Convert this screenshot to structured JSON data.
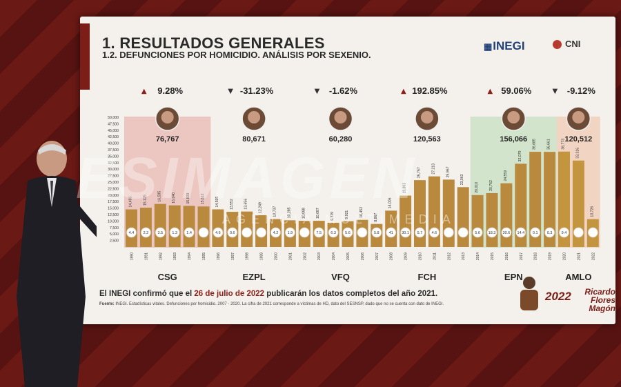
{
  "screen": {
    "title": "1. RESULTADOS GENERALES",
    "subtitle": "1.2. DEFUNCIONES POR HOMICIDIO. ANÁLISIS POR SEXENIO.",
    "logos": {
      "inegi": "INEGI",
      "cni": "CNI"
    },
    "footer_note": {
      "prefix": "El INEGI confirmó que el ",
      "highlight": "26 de julio de 2022",
      "suffix": " publicarán los datos completos del año 2021."
    },
    "source_label": "Fuente:",
    "source_text": "INEGI. Estadísticas vitales. Defunciones por homicidio. 2007 - 2020. La cifra de 2021 corresponde a víctimas de HD, dato del SESNSP, dado que no se cuenta con dato de INEGI.",
    "year_logo": "2022",
    "year_logo_name": "Ricardo Flores Magón"
  },
  "watermark": {
    "main": "ESIMAGEN",
    "sub": "AGENCIA MULTIMEDIA"
  },
  "colors": {
    "bar": "#b98a3e",
    "bar_amlo": "#c4953f",
    "up": "#8c1f1a",
    "down": "#333333",
    "band_csg": "#e9b7b3",
    "band_epn": "#c7dfc0",
    "band_amlo": "#f2c9b4"
  },
  "chart_data": {
    "type": "bar",
    "ylim": [
      0,
      50000
    ],
    "y_ticks": [
      "50,000",
      "47,500",
      "45,000",
      "42,500",
      "40,000",
      "37,500",
      "35,000",
      "32,500",
      "30,000",
      "27,500",
      "25,000",
      "22,500",
      "20,000",
      "17,500",
      "15,000",
      "12,500",
      "10,000",
      "7,500",
      "5,000",
      "2,500"
    ],
    "categories": [
      "1990",
      "1991",
      "1992",
      "1993",
      "1994",
      "1995",
      "1996",
      "1997",
      "1998",
      "1999",
      "2000",
      "2001",
      "2002",
      "2003",
      "2004",
      "2005",
      "2006",
      "2007",
      "2008",
      "2009",
      "2010",
      "2011",
      "2012",
      "2013",
      "2014",
      "2015",
      "2016",
      "2017",
      "2018",
      "2019",
      "2020",
      "2021",
      "2022"
    ],
    "values": [
      14493,
      15125,
      16595,
      16040,
      15839,
      15612,
      14505,
      13552,
      13656,
      12249,
      10737,
      10285,
      10088,
      10087,
      9329,
      9921,
      10452,
      8867,
      14006,
      19803,
      25757,
      27213,
      25967,
      23063,
      20010,
      20762,
      24559,
      32079,
      36685,
      36661,
      36773,
      33316,
      10726
    ],
    "bar_labels": [
      "14,493",
      "15,125",
      "16,595",
      "16,040",
      "15,839",
      "15,612",
      "14,505",
      "13,552",
      "13,656",
      "12,249",
      "10,737",
      "10,285",
      "10,088",
      "10,087",
      "9,329",
      "9,921",
      "10,452",
      "8,867",
      "14,006",
      "19,803",
      "25,757",
      "27,213",
      "25,967",
      "23,063",
      "20,010",
      "20,762",
      "24,559",
      "32,079",
      "36,685",
      "36,661",
      "36,773",
      "33,316",
      "10,726"
    ],
    "circle_labels": [
      "4.4",
      "2.2",
      "3.5",
      "1.3",
      "1.4",
      "",
      "4.6",
      "0.6",
      "",
      "",
      "4.2",
      "1.9",
      "",
      "7.5",
      "6.3",
      "5.6",
      "",
      "5.8",
      "41",
      "30.1",
      "5.7",
      "4.6",
      "",
      "",
      "5.6",
      "18.3",
      "30.6",
      "14.4",
      "0.1",
      "0.3",
      "9.4",
      "",
      ""
    ],
    "sexenios": [
      {
        "name": "CSG",
        "change": "9.28%",
        "direction": "up",
        "total": "76,767",
        "from": 0,
        "to": 5
      },
      {
        "name": "EZPL",
        "change": "-31.23%",
        "direction": "down",
        "total": "80,671",
        "from": 6,
        "to": 11
      },
      {
        "name": "VFQ",
        "change": "-1.62%",
        "direction": "down",
        "total": "60,280",
        "from": 12,
        "to": 17
      },
      {
        "name": "FCH",
        "change": "192.85%",
        "direction": "up",
        "total": "120,563",
        "from": 18,
        "to": 23
      },
      {
        "name": "EPN",
        "change": "59.06%",
        "direction": "up",
        "total": "156,066",
        "from": 24,
        "to": 29
      },
      {
        "name": "AMLO",
        "change": "-9.12%",
        "direction": "down",
        "total": "120,512",
        "from": 30,
        "to": 32
      }
    ]
  }
}
